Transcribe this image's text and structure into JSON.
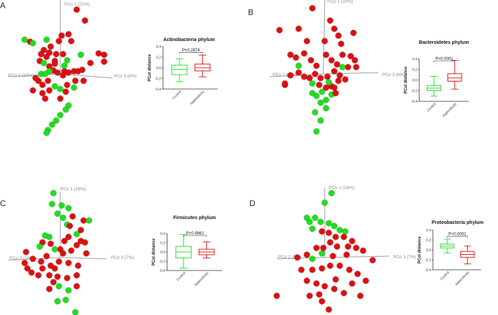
{
  "colors": {
    "control": "#22dd22",
    "appendicitis": "#dd1111",
    "axis": "#999999"
  },
  "panels": [
    {
      "label": "A",
      "pcoa": {
        "up_label": "PCo 1 (21%)",
        "left_label": "PCo 2 (12%)",
        "right_label": "PCo 3 (8%)"
      },
      "chart_data": {
        "type": "box",
        "title": "Actinobacteria phylum",
        "ylabel": "PCoI distance",
        "categories": [
          "Control",
          "Appendicitis"
        ],
        "yticks": [
          "0.4",
          "0.2",
          "0.0",
          "-0.2",
          "-0.4"
        ],
        "ylim": [
          -0.4,
          0.4
        ],
        "p_value": "P=0.2874",
        "boxes": [
          {
            "min": -0.26,
            "q1": -0.13,
            "median": -0.03,
            "q3": 0.05,
            "max": 0.17
          },
          {
            "min": -0.17,
            "q1": -0.06,
            "median": 0.0,
            "q3": 0.07,
            "max": 0.24
          }
        ]
      }
    },
    {
      "label": "B",
      "pcoa": {
        "up_label": "PCo 1 (20%)",
        "left_label": "PCo 2 (11%)",
        "right_label": "PCo 3 (6%)"
      },
      "chart_data": {
        "type": "box",
        "title": "Bacteroidetes phylum",
        "ylabel": "PCoI distance",
        "categories": [
          "Control",
          "Appendicitis"
        ],
        "yticks": [
          "0.4",
          "0.2",
          "0.0",
          "-0.2",
          "-0.4"
        ],
        "ylim": [
          -0.4,
          0.4
        ],
        "p_value": "P<0.0001",
        "boxes": [
          {
            "min": -0.3,
            "q1": -0.2,
            "median": -0.15,
            "q3": -0.1,
            "max": 0.07
          },
          {
            "min": -0.17,
            "q1": -0.02,
            "median": 0.04,
            "q3": 0.12,
            "max": 0.37
          }
        ]
      }
    },
    {
      "label": "C",
      "pcoa": {
        "up_label": "PCo 1 (26%)",
        "left_label": "PCo 2 (10%)",
        "right_label": "PCo 3 (7%)"
      },
      "chart_data": {
        "type": "box",
        "title": "Firmicutes phylum",
        "ylabel": "PCoI distance",
        "categories": [
          "Control",
          "Appendicitis"
        ],
        "yticks": [
          "0.4",
          "0.2",
          "0.0",
          "-0.2",
          "-0.4"
        ],
        "ylim": [
          -0.4,
          0.4
        ],
        "p_value": "P=0.9881",
        "boxes": [
          {
            "min": -0.35,
            "q1": -0.13,
            "median": 0.0,
            "q3": 0.12,
            "max": 0.38
          },
          {
            "min": -0.13,
            "q1": -0.06,
            "median": 0.0,
            "q3": 0.06,
            "max": 0.22
          }
        ]
      }
    },
    {
      "label": "D",
      "pcoa": {
        "up_label": "PCo 1 (16%)",
        "left_label": "PCo 2 (9%)",
        "right_label": "PCo 3 (7%)"
      },
      "chart_data": {
        "type": "box",
        "title": "Proteobacteria phylum",
        "ylabel": "PCoI distance",
        "categories": [
          "Control",
          "Appendicitis"
        ],
        "yticks": [
          "0.4",
          "0.2",
          "0.0",
          "-0.2",
          "-0.4"
        ],
        "ylim": [
          -0.4,
          0.4
        ],
        "p_value": "P<0.0001",
        "boxes": [
          {
            "min": -0.06,
            "q1": 0.04,
            "median": 0.08,
            "q3": 0.12,
            "max": 0.22
          },
          {
            "min": -0.28,
            "q1": -0.15,
            "median": -0.09,
            "q3": -0.03,
            "max": 0.08
          }
        ]
      }
    }
  ]
}
